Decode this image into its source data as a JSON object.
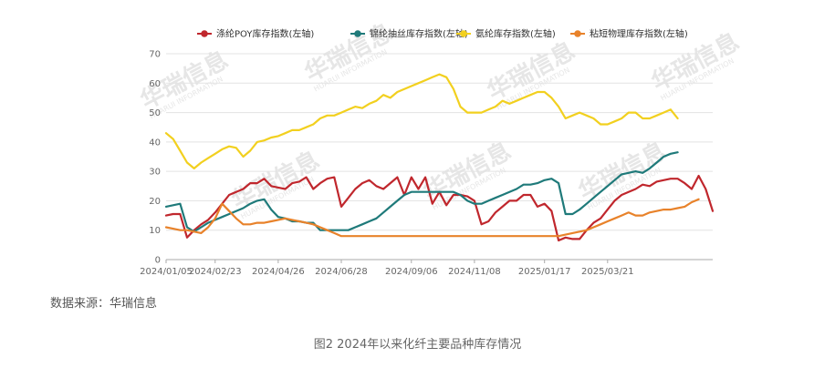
{
  "source": "数据来源：华瑞信息",
  "caption": "图2  2024年以来化纤主要品种库存情况",
  "watermark": {
    "brand": "华瑞信息",
    "sub": "HUARUI INFORMATION"
  },
  "chart_data": {
    "type": "line",
    "title": "",
    "xlabel": "",
    "ylabel": "",
    "ylim": [
      0,
      70
    ],
    "yticks": [
      0,
      10,
      20,
      30,
      40,
      50,
      60,
      70
    ],
    "x_tick_labels": [
      "2024/01/05",
      "2024/02/23",
      "2024/04/26",
      "2024/06/28",
      "2024/09/06",
      "2024/11/08",
      "2025/01/17",
      "2025/03/21"
    ],
    "x_tick_index": [
      0,
      7,
      16,
      25,
      35,
      44,
      54,
      63
    ],
    "grid": "horizontal",
    "legend_position": "top",
    "series": [
      {
        "name": "涤纶POY库存指数(左轴)",
        "color": "#c0272d",
        "values": [
          15,
          15.5,
          15.5,
          7.5,
          10,
          12,
          13.5,
          16,
          19,
          22,
          23,
          24,
          26,
          26,
          27.5,
          25,
          24.5,
          24,
          26,
          26.5,
          28,
          24,
          26,
          27.5,
          28,
          18,
          21,
          24,
          26,
          27,
          25,
          24,
          26,
          28,
          22,
          28,
          24,
          28,
          19,
          23,
          18.5,
          22,
          22,
          21.5,
          20,
          12,
          13,
          16,
          18,
          20,
          20,
          22,
          22,
          18,
          19,
          16.5,
          6.5,
          7.5,
          7,
          7,
          10,
          12.5,
          14,
          17,
          20,
          22,
          23,
          24,
          25.5,
          25,
          26.5,
          27,
          27.5,
          27.5,
          26,
          24,
          28.5,
          24,
          16.5
        ]
      },
      {
        "name": "锦纶抽丝库存指数(左轴)",
        "color": "#1f7a7a",
        "values": [
          18,
          18.5,
          19,
          11,
          9.5,
          11,
          12.5,
          13.5,
          14.5,
          15.5,
          16.5,
          17.5,
          19,
          20,
          20.5,
          17,
          14.5,
          14,
          13,
          13,
          12.5,
          12.5,
          10,
          10,
          10,
          10,
          10,
          11,
          12,
          13,
          14,
          16,
          18,
          20,
          22,
          23,
          23,
          23,
          23,
          23,
          23,
          23,
          22,
          20,
          19,
          19,
          20,
          21,
          22,
          23,
          24,
          25.5,
          25.5,
          26,
          27,
          27.5,
          26,
          15.5,
          15.5,
          17,
          19,
          21,
          23,
          25,
          27,
          29,
          29.5,
          30,
          29.5,
          31,
          33,
          35,
          36,
          36.5
        ]
      },
      {
        "name": "氨纶库存指数(左轴)",
        "color": "#f2d01f",
        "values": [
          43,
          41,
          37,
          33,
          31,
          33,
          34.5,
          36,
          37.5,
          38.5,
          38,
          35,
          37,
          40,
          40.5,
          41.5,
          42,
          43,
          44,
          44,
          45,
          46,
          48,
          49,
          49,
          50,
          51,
          52,
          51.5,
          53,
          54,
          56,
          55,
          57,
          58,
          59,
          60,
          61,
          62,
          63,
          62,
          58,
          52,
          50,
          50,
          50,
          51,
          52,
          54,
          53,
          54,
          55,
          56,
          57,
          57,
          55,
          52,
          48,
          49,
          50,
          49,
          48,
          46,
          46,
          47,
          48,
          50,
          50,
          48,
          48,
          49,
          50,
          51,
          48
        ]
      },
      {
        "name": "粘短物理库存指数(左轴)",
        "color": "#e8822a",
        "values": [
          11,
          10.5,
          10,
          10,
          9.5,
          9,
          11,
          14,
          19,
          16.5,
          14,
          12,
          12,
          12.5,
          12.5,
          13,
          13.5,
          14,
          13.5,
          13,
          12.5,
          12,
          11,
          10,
          9,
          8,
          8,
          8,
          8,
          8,
          8,
          8,
          8,
          8,
          8,
          8,
          8,
          8,
          8,
          8,
          8,
          8,
          8,
          8,
          8,
          8,
          8,
          8,
          8,
          8,
          8,
          8,
          8,
          8,
          8,
          8,
          8,
          8.5,
          9,
          9.5,
          10,
          11,
          12,
          13,
          14,
          15,
          16,
          15,
          15,
          16,
          16.5,
          17,
          17,
          17.5,
          18,
          19.5,
          20.5
        ]
      }
    ]
  }
}
